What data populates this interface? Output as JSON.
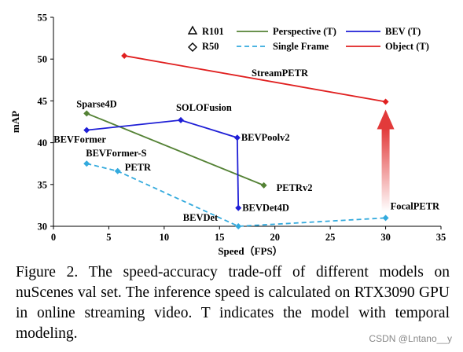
{
  "chart_data": {
    "type": "scatter",
    "xlabel": "Speed（FPS）",
    "ylabel": "mAP",
    "xlim": [
      0,
      35
    ],
    "ylim": [
      30,
      55
    ],
    "xticks": [
      0,
      5,
      10,
      15,
      20,
      25,
      30,
      35
    ],
    "yticks": [
      30,
      35,
      40,
      45,
      50,
      55
    ],
    "grid": false,
    "legend_position": "top",
    "marker_legend": [
      {
        "label": "R101",
        "marker": "triangle"
      },
      {
        "label": "R50",
        "marker": "diamond"
      }
    ],
    "series": [
      {
        "name": "Perspective (T)",
        "color": "#548235",
        "dash": "solid",
        "points": [
          {
            "x": 3.0,
            "y": 43.5,
            "label": "Sparse4D"
          },
          {
            "x": 19.0,
            "y": 34.9,
            "label": "PETRv2"
          }
        ]
      },
      {
        "name": "BEV (T)",
        "color": "#1f1fd6",
        "dash": "solid",
        "points": [
          {
            "x": 3.0,
            "y": 41.5,
            "label": "BEVFormer"
          },
          {
            "x": 11.5,
            "y": 42.7,
            "label": "SOLOFusion"
          },
          {
            "x": 16.6,
            "y": 40.6,
            "label": "BEVPoolv2"
          },
          {
            "x": 16.7,
            "y": 32.2,
            "label": "BEVDet4D"
          }
        ]
      },
      {
        "name": "Single Frame",
        "color": "#33aadd",
        "dash": "dashed",
        "points": [
          {
            "x": 3.0,
            "y": 37.5,
            "label": "BEVFormer-S"
          },
          {
            "x": 5.8,
            "y": 36.6,
            "label": "PETR"
          },
          {
            "x": 16.7,
            "y": 30.0,
            "label": "BEVDet"
          },
          {
            "x": 30.0,
            "y": 31.0,
            "label": "FocalPETR"
          }
        ]
      },
      {
        "name": "Object (T)",
        "color": "#e02020",
        "dash": "solid",
        "points": [
          {
            "x": 6.4,
            "y": 50.4,
            "label": ""
          },
          {
            "x": 30.0,
            "y": 44.9,
            "label": ""
          }
        ]
      }
    ],
    "annotations": [
      "StreamPETR"
    ]
  },
  "caption": "Figure 2. The speed-accuracy trade-off of different models on nuScenes val set. The inference speed is calculated on RTX3090 GPU in online streaming video. T indicates the model with temporal modeling.",
  "watermark": "CSDN @Lntano__y"
}
